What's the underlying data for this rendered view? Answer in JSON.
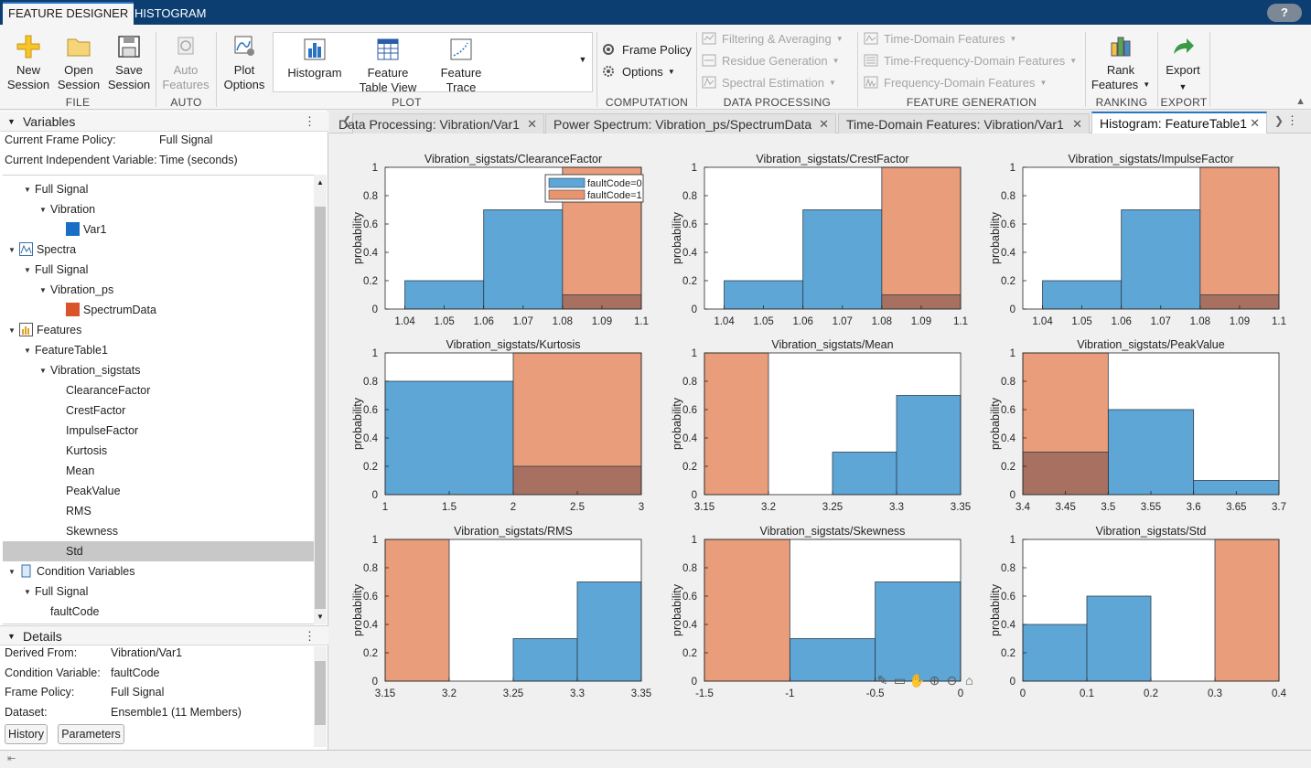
{
  "app_tabs": [
    "FEATURE DESIGNER",
    "HISTOGRAM"
  ],
  "help": "?",
  "ribbon": {
    "file": {
      "label": "FILE",
      "new": "New\nSession",
      "open": "Open\nSession",
      "save": "Save\nSession"
    },
    "auto": {
      "label": "AUTO",
      "auto_features": "Auto\nFeatures"
    },
    "plot": {
      "label": "PLOT",
      "plot_options": "Plot\nOptions",
      "histogram": "Histogram",
      "feature_table_view": "Feature\nTable View",
      "feature_trace": "Feature\nTrace"
    },
    "computation": {
      "label": "COMPUTATION",
      "frame_policy": "Frame Policy",
      "options": "Options"
    },
    "data_processing": {
      "label": "DATA PROCESSING",
      "filtering": "Filtering & Averaging",
      "residue": "Residue Generation",
      "spectral": "Spectral Estimation"
    },
    "feature_generation": {
      "label": "FEATURE GENERATION",
      "time_domain": "Time-Domain Features",
      "time_frequency": "Time-Frequency-Domain Features",
      "frequency_domain": "Frequency-Domain Features"
    },
    "ranking": {
      "label": "RANKING",
      "rank_features": "Rank\nFeatures"
    },
    "export": {
      "label": "EXPORT",
      "export": "Export"
    }
  },
  "variables": {
    "title": "Variables",
    "frame_policy_label": "Current Frame Policy:",
    "frame_policy_value": "Full Signal",
    "indep_label": "Current Independent Variable:",
    "indep_value": "Time (seconds)",
    "tree": [
      {
        "label": "Full Signal",
        "level": 1,
        "arrow": true,
        "icon": ""
      },
      {
        "label": "Vibration",
        "level": 2,
        "arrow": true,
        "icon": ""
      },
      {
        "label": "Var1",
        "level": 3,
        "arrow": false,
        "icon": "blue-square"
      },
      {
        "label": "Spectra",
        "level": 0,
        "arrow": true,
        "icon": "spectra"
      },
      {
        "label": "Full Signal",
        "level": 1,
        "arrow": true,
        "icon": ""
      },
      {
        "label": "Vibration_ps",
        "level": 2,
        "arrow": true,
        "icon": ""
      },
      {
        "label": "SpectrumData",
        "level": 3,
        "arrow": false,
        "icon": "orange-square"
      },
      {
        "label": "Features",
        "level": 0,
        "arrow": true,
        "icon": "features"
      },
      {
        "label": "FeatureTable1",
        "level": 1,
        "arrow": true,
        "icon": ""
      },
      {
        "label": "Vibration_sigstats",
        "level": 2,
        "arrow": true,
        "icon": ""
      },
      {
        "label": "ClearanceFactor",
        "level": 3,
        "arrow": false,
        "icon": ""
      },
      {
        "label": "CrestFactor",
        "level": 3,
        "arrow": false,
        "icon": ""
      },
      {
        "label": "ImpulseFactor",
        "level": 3,
        "arrow": false,
        "icon": ""
      },
      {
        "label": "Kurtosis",
        "level": 3,
        "arrow": false,
        "icon": ""
      },
      {
        "label": "Mean",
        "level": 3,
        "arrow": false,
        "icon": ""
      },
      {
        "label": "PeakValue",
        "level": 3,
        "arrow": false,
        "icon": ""
      },
      {
        "label": "RMS",
        "level": 3,
        "arrow": false,
        "icon": ""
      },
      {
        "label": "Skewness",
        "level": 3,
        "arrow": false,
        "icon": ""
      },
      {
        "label": "Std",
        "level": 3,
        "arrow": false,
        "icon": "",
        "selected": true
      },
      {
        "label": "Condition Variables",
        "level": 0,
        "arrow": true,
        "icon": "condition"
      },
      {
        "label": "Full Signal",
        "level": 1,
        "arrow": true,
        "icon": ""
      },
      {
        "label": "faultCode",
        "level": 2,
        "arrow": false,
        "icon": ""
      }
    ]
  },
  "details": {
    "title": "Details",
    "rows": [
      {
        "label": "Derived From:",
        "value": "Vibration/Var1"
      },
      {
        "label": "Condition Variable:",
        "value": "faultCode"
      },
      {
        "label": "Frame Policy:",
        "value": "Full Signal"
      },
      {
        "label": "Dataset:",
        "value": "Ensemble1 (11 Members)"
      }
    ],
    "history": "History",
    "parameters": "Parameters"
  },
  "doc_tabs": [
    {
      "label": "Data Processing: Vibration/Var1",
      "active": false
    },
    {
      "label": "Power Spectrum: Vibration_ps/SpectrumData",
      "active": false
    },
    {
      "label": "Time-Domain Features: Vibration/Var1",
      "active": false
    },
    {
      "label": "Histogram: FeatureTable1",
      "active": true
    }
  ],
  "colors": {
    "blue": "#5da6d6",
    "orange": "#e8956f",
    "overlap": "#a87060"
  },
  "chart_data": [
    {
      "type": "bar",
      "title": "Vibration_sigstats/ClearanceFactor",
      "ylabel": "probability",
      "xlim": [
        1.035,
        1.1
      ],
      "ylim": [
        0,
        1
      ],
      "xticks": [
        "1.04",
        "1.05",
        "1.06",
        "1.07",
        "1.08",
        "1.09",
        "1.1"
      ],
      "xtickvals": [
        1.04,
        1.05,
        1.06,
        1.07,
        1.08,
        1.09,
        1.1
      ],
      "legend": [
        "faultCode=0",
        "faultCode=1"
      ],
      "series": [
        {
          "name": "faultCode=0",
          "edges": [
            1.04,
            1.06,
            1.08,
            1.1
          ],
          "values": [
            0.2,
            0.7,
            0.1
          ]
        },
        {
          "name": "faultCode=1",
          "edges": [
            1.08,
            1.1
          ],
          "values": [
            1.0
          ]
        }
      ]
    },
    {
      "type": "bar",
      "title": "Vibration_sigstats/CrestFactor",
      "ylabel": "probability",
      "xlim": [
        1.035,
        1.1
      ],
      "ylim": [
        0,
        1
      ],
      "xticks": [
        "1.04",
        "1.05",
        "1.06",
        "1.07",
        "1.08",
        "1.09",
        "1.1"
      ],
      "xtickvals": [
        1.04,
        1.05,
        1.06,
        1.07,
        1.08,
        1.09,
        1.1
      ],
      "series": [
        {
          "name": "faultCode=0",
          "edges": [
            1.04,
            1.06,
            1.08,
            1.1
          ],
          "values": [
            0.2,
            0.7,
            0.1
          ]
        },
        {
          "name": "faultCode=1",
          "edges": [
            1.08,
            1.1
          ],
          "values": [
            1.0
          ]
        }
      ]
    },
    {
      "type": "bar",
      "title": "Vibration_sigstats/ImpulseFactor",
      "ylabel": "probability",
      "xlim": [
        1.035,
        1.1
      ],
      "ylim": [
        0,
        1
      ],
      "xticks": [
        "1.04",
        "1.05",
        "1.06",
        "1.07",
        "1.08",
        "1.09",
        "1.1"
      ],
      "xtickvals": [
        1.04,
        1.05,
        1.06,
        1.07,
        1.08,
        1.09,
        1.1
      ],
      "series": [
        {
          "name": "faultCode=0",
          "edges": [
            1.04,
            1.06,
            1.08,
            1.1
          ],
          "values": [
            0.2,
            0.7,
            0.1
          ]
        },
        {
          "name": "faultCode=1",
          "edges": [
            1.08,
            1.1
          ],
          "values": [
            1.0
          ]
        }
      ]
    },
    {
      "type": "bar",
      "title": "Vibration_sigstats/Kurtosis",
      "ylabel": "probability",
      "xlim": [
        1,
        3
      ],
      "ylim": [
        0,
        1
      ],
      "xticks": [
        "1",
        "1.5",
        "2",
        "2.5",
        "3"
      ],
      "xtickvals": [
        1,
        1.5,
        2,
        2.5,
        3
      ],
      "series": [
        {
          "name": "faultCode=0",
          "edges": [
            1,
            2,
            3
          ],
          "values": [
            0.8,
            0.2
          ]
        },
        {
          "name": "faultCode=1",
          "edges": [
            2,
            3
          ],
          "values": [
            1.0
          ]
        }
      ]
    },
    {
      "type": "bar",
      "title": "Vibration_sigstats/Mean",
      "ylabel": "probability",
      "xlim": [
        3.15,
        3.35
      ],
      "ylim": [
        0,
        1
      ],
      "xticks": [
        "3.15",
        "3.2",
        "3.25",
        "3.3",
        "3.35"
      ],
      "xtickvals": [
        3.15,
        3.2,
        3.25,
        3.3,
        3.35
      ],
      "series": [
        {
          "name": "faultCode=0",
          "edges": [
            3.25,
            3.3,
            3.35
          ],
          "values": [
            0.3,
            0.7
          ]
        },
        {
          "name": "faultCode=1",
          "edges": [
            3.15,
            3.2
          ],
          "values": [
            1.0
          ]
        }
      ]
    },
    {
      "type": "bar",
      "title": "Vibration_sigstats/PeakValue",
      "ylabel": "probability",
      "xlim": [
        3.4,
        3.7
      ],
      "ylim": [
        0,
        1
      ],
      "xticks": [
        "3.4",
        "3.45",
        "3.5",
        "3.55",
        "3.6",
        "3.65",
        "3.7"
      ],
      "xtickvals": [
        3.4,
        3.45,
        3.5,
        3.55,
        3.6,
        3.65,
        3.7
      ],
      "series": [
        {
          "name": "faultCode=0",
          "edges": [
            3.4,
            3.5,
            3.6,
            3.7
          ],
          "values": [
            0.3,
            0.6,
            0.1
          ]
        },
        {
          "name": "faultCode=1",
          "edges": [
            3.4,
            3.5
          ],
          "values": [
            1.0
          ]
        }
      ]
    },
    {
      "type": "bar",
      "title": "Vibration_sigstats/RMS",
      "ylabel": "probability",
      "xlim": [
        3.15,
        3.35
      ],
      "ylim": [
        0,
        1
      ],
      "xticks": [
        "3.15",
        "3.2",
        "3.25",
        "3.3",
        "3.35"
      ],
      "xtickvals": [
        3.15,
        3.2,
        3.25,
        3.3,
        3.35
      ],
      "series": [
        {
          "name": "faultCode=0",
          "edges": [
            3.25,
            3.3,
            3.35
          ],
          "values": [
            0.3,
            0.7
          ]
        },
        {
          "name": "faultCode=1",
          "edges": [
            3.15,
            3.2
          ],
          "values": [
            1.0
          ]
        }
      ]
    },
    {
      "type": "bar",
      "title": "Vibration_sigstats/Skewness",
      "ylabel": "probability",
      "xlim": [
        -1.5,
        0
      ],
      "ylim": [
        0,
        1
      ],
      "xticks": [
        "-1.5",
        "-1",
        "-0.5",
        "0"
      ],
      "xtickvals": [
        -1.5,
        -1,
        -0.5,
        0
      ],
      "series": [
        {
          "name": "faultCode=0",
          "edges": [
            -1,
            -0.5,
            0
          ],
          "values": [
            0.3,
            0.7
          ]
        },
        {
          "name": "faultCode=1",
          "edges": [
            -1.5,
            -1
          ],
          "values": [
            1.0
          ]
        }
      ]
    },
    {
      "type": "bar",
      "title": "Vibration_sigstats/Std",
      "ylabel": "probability",
      "xlim": [
        0,
        0.4
      ],
      "ylim": [
        0,
        1
      ],
      "xticks": [
        "0",
        "0.1",
        "0.2",
        "0.3",
        "0.4"
      ],
      "xtickvals": [
        0,
        0.1,
        0.2,
        0.3,
        0.4
      ],
      "series": [
        {
          "name": "faultCode=0",
          "edges": [
            0,
            0.1,
            0.2
          ],
          "values": [
            0.4,
            0.6
          ]
        },
        {
          "name": "faultCode=1",
          "edges": [
            0.3,
            0.4
          ],
          "values": [
            1.0
          ]
        }
      ]
    }
  ]
}
